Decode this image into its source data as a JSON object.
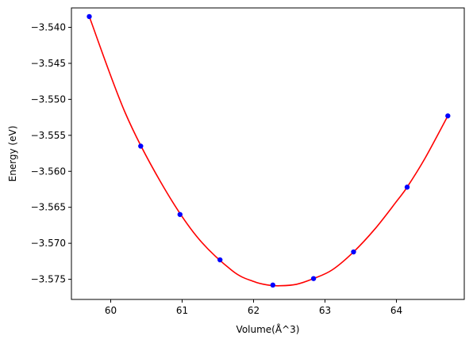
{
  "chart_data": {
    "type": "scatter",
    "xlabel": "Volume(Å^3)",
    "ylabel": "Energy (eV)",
    "xlim": [
      59.45,
      64.95
    ],
    "ylim": [
      -3.5778,
      -3.5373
    ],
    "grid": false,
    "x_ticks": [
      {
        "value": 60,
        "label": "60"
      },
      {
        "value": 61,
        "label": "61"
      },
      {
        "value": 62,
        "label": "62"
      },
      {
        "value": 63,
        "label": "63"
      },
      {
        "value": 64,
        "label": "64"
      }
    ],
    "y_ticks": [
      {
        "value": -3.54,
        "label": "−3.540"
      },
      {
        "value": -3.545,
        "label": "−3.545"
      },
      {
        "value": -3.55,
        "label": "−3.550"
      },
      {
        "value": -3.555,
        "label": "−3.555"
      },
      {
        "value": -3.56,
        "label": "−3.560"
      },
      {
        "value": -3.565,
        "label": "−3.565"
      },
      {
        "value": -3.57,
        "label": "−3.570"
      },
      {
        "value": -3.575,
        "label": "−3.575"
      }
    ],
    "series": [
      {
        "kind": "points",
        "color": "#0000ff",
        "x": [
          59.7,
          60.42,
          60.97,
          61.53,
          62.27,
          62.84,
          63.4,
          64.15,
          64.72
        ],
        "y": [
          -3.5385,
          -3.5565,
          -3.566,
          -3.5723,
          -3.5758,
          -3.5749,
          -3.5712,
          -3.5622,
          -3.5523
        ]
      },
      {
        "kind": "fit-line",
        "color": "#ff0000",
        "x": [
          59.7,
          60.2,
          60.7,
          61.2,
          61.7,
          62.0,
          62.2,
          62.37,
          62.6,
          62.84,
          63.1,
          63.4,
          63.7,
          64.0,
          64.15,
          64.4,
          64.72
        ],
        "y": [
          -3.5385,
          -3.5518,
          -3.5615,
          -3.569,
          -3.5738,
          -3.5753,
          -3.5758,
          -3.5759,
          -3.5757,
          -3.5749,
          -3.5737,
          -3.5712,
          -3.568,
          -3.5642,
          -3.5622,
          -3.5582,
          -3.5523
        ]
      }
    ]
  }
}
